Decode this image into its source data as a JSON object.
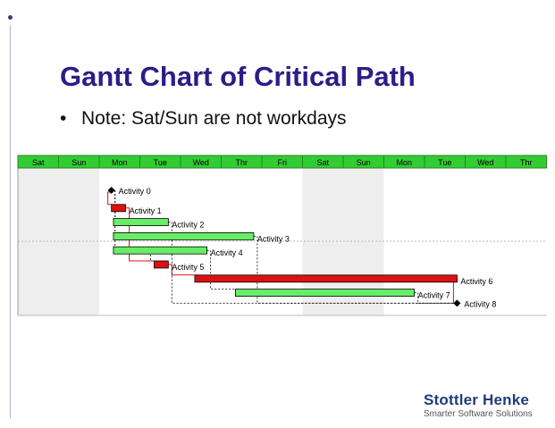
{
  "slide": {
    "title": "Gantt Chart of Critical Path",
    "bullet": "Note: Sat/Sun are not workdays"
  },
  "logo": {
    "name": "Stottler Henke",
    "tagline": "Smarter Software Solutions"
  },
  "colors": {
    "title": "#2d1d86",
    "header": "#33cc33",
    "critical": "#dd1111",
    "noncritical": "#66ee66",
    "weekend_shade": "#eeeeee"
  },
  "chart_data": {
    "type": "gantt",
    "days": [
      "Sat",
      "Sun",
      "Mon",
      "Tue",
      "Wed",
      "Thr",
      "Fri",
      "Sat",
      "Sun",
      "Mon",
      "Tue",
      "Wed",
      "Thr"
    ],
    "weekend_days": [
      0,
      1,
      7,
      8
    ],
    "activities": [
      {
        "name": "Activity 0",
        "start": 2.3,
        "end": 2.3,
        "critical": true,
        "milestone": true
      },
      {
        "name": "Activity 1",
        "start": 2.3,
        "end": 2.65,
        "critical": true
      },
      {
        "name": "Activity 2",
        "start": 2.35,
        "end": 3.7,
        "critical": false
      },
      {
        "name": "Activity 3",
        "start": 2.35,
        "end": 5.8,
        "critical": false
      },
      {
        "name": "Activity 4",
        "start": 2.35,
        "end": 4.65,
        "critical": false
      },
      {
        "name": "Activity 5",
        "start": 3.35,
        "end": 3.7,
        "critical": true
      },
      {
        "name": "Activity 6",
        "start": 4.35,
        "end": 10.8,
        "critical": true
      },
      {
        "name": "Activity 7",
        "start": 5.35,
        "end": 9.75,
        "critical": false
      },
      {
        "name": "Activity 8",
        "start": 10.8,
        "end": 10.8,
        "critical": true,
        "milestone": true
      }
    ],
    "dependencies": [
      {
        "from": 0,
        "to": 1
      },
      {
        "from": 0,
        "to": 2
      },
      {
        "from": 0,
        "to": 3
      },
      {
        "from": 0,
        "to": 4
      },
      {
        "from": 1,
        "to": 5
      },
      {
        "from": 4,
        "to": 5
      },
      {
        "from": 5,
        "to": 6
      },
      {
        "from": 4,
        "to": 7
      },
      {
        "from": 6,
        "to": 8
      },
      {
        "from": 7,
        "to": 8
      },
      {
        "from": 2,
        "to": 8
      },
      {
        "from": 3,
        "to": 8
      }
    ]
  }
}
